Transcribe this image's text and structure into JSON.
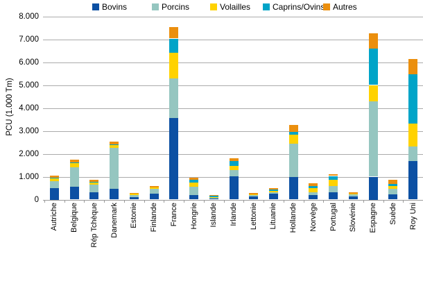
{
  "chart_data": {
    "type": "bar",
    "stacked": true,
    "title": "",
    "xlabel": "",
    "ylabel": "PCU (1.000 Tm)",
    "ylim": [
      0,
      8000
    ],
    "grid": true,
    "legend_position": "top",
    "ytick_labels": [
      "0",
      "1.000",
      "2.000",
      "3.000",
      "4.000",
      "5.000",
      "6.000",
      "7.000",
      "8.000"
    ],
    "ytick_values": [
      0,
      1000,
      2000,
      3000,
      4000,
      5000,
      6000,
      7000,
      8000
    ],
    "categories": [
      "Autriche",
      "Belgique",
      "Rép Tchèque",
      "Danemark",
      "Estonie",
      "Finlande",
      "France",
      "Hongrie",
      "Islande",
      "Irlande",
      "Lettonie",
      "Lituanie",
      "Hollande",
      "Norvège",
      "Portugal",
      "Slovénie",
      "Espagne",
      "Suède",
      "Roy Uni"
    ],
    "series": [
      {
        "name": "Bovins",
        "color": "#0c50a3",
        "values": [
          500,
          570,
          310,
          470,
          120,
          270,
          3570,
          190,
          60,
          1020,
          150,
          260,
          970,
          190,
          330,
          150,
          1000,
          240,
          1680
        ]
      },
      {
        "name": "Porcins",
        "color": "#95c6c0",
        "values": [
          300,
          840,
          340,
          1800,
          90,
          200,
          1730,
          360,
          30,
          270,
          50,
          60,
          1470,
          130,
          270,
          70,
          3300,
          220,
          650
        ]
      },
      {
        "name": "Volailles",
        "color": "#ffd200",
        "values": [
          130,
          200,
          100,
          110,
          40,
          60,
          1100,
          200,
          20,
          180,
          20,
          70,
          400,
          170,
          260,
          50,
          700,
          120,
          1000
        ]
      },
      {
        "name": "Caprins/Ovins",
        "color": "#00a4c8",
        "values": [
          30,
          20,
          30,
          30,
          0,
          0,
          630,
          120,
          60,
          220,
          0,
          50,
          110,
          110,
          170,
          0,
          1600,
          100,
          2150
        ]
      },
      {
        "name": "Autres",
        "color": "#eb8f0e",
        "values": [
          90,
          100,
          70,
          110,
          50,
          50,
          490,
          70,
          30,
          100,
          60,
          60,
          300,
          100,
          80,
          50,
          650,
          170,
          650
        ]
      }
    ],
    "colors": {
      "gridline": "#ababab",
      "axis": "#9a9a9a",
      "background": "#ffffff",
      "text": "#000000"
    }
  }
}
